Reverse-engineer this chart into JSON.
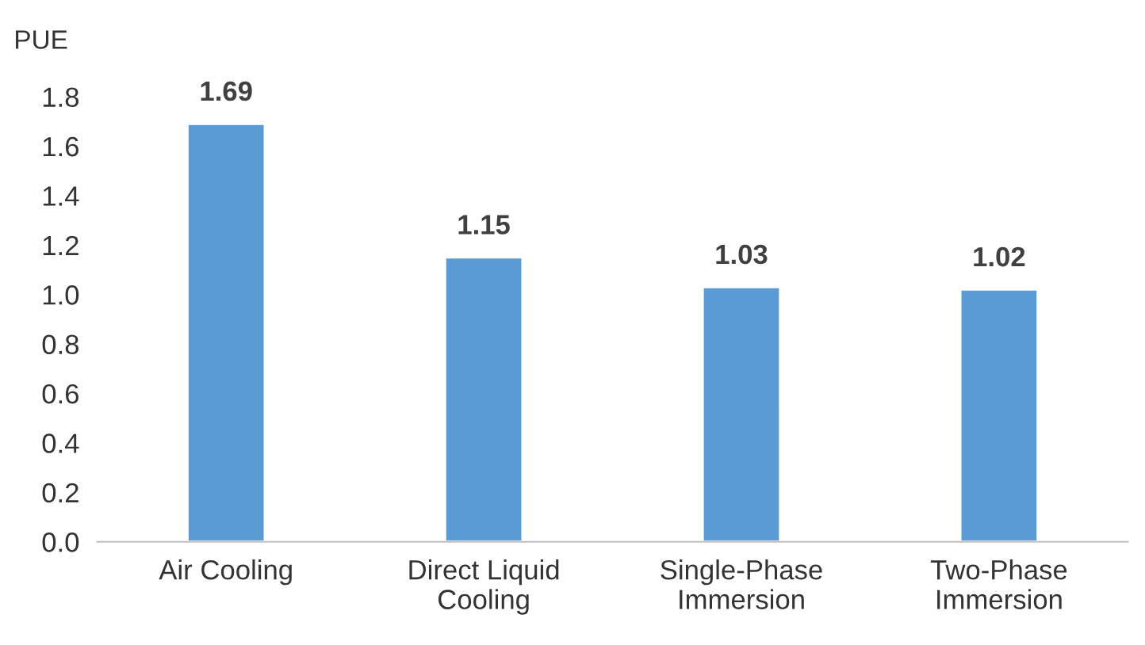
{
  "chart_data": {
    "type": "bar",
    "ylabel": "PUE",
    "categories": [
      "Air Cooling",
      "Direct Liquid Cooling",
      "Single-Phase Immersion",
      "Two-Phase Immersion"
    ],
    "values": [
      1.69,
      1.15,
      1.03,
      1.02
    ],
    "color": "#5b9bd5",
    "data_labels": true,
    "ylim": [
      0,
      1.8
    ],
    "yticks": [
      {
        "value": 0,
        "label": "0.0"
      },
      0.2,
      0.4,
      0.6,
      0.8,
      {
        "value": 1,
        "label": "1.0"
      },
      1.2,
      1.4,
      1.6,
      1.8
    ],
    "grid": false,
    "legend": false
  }
}
